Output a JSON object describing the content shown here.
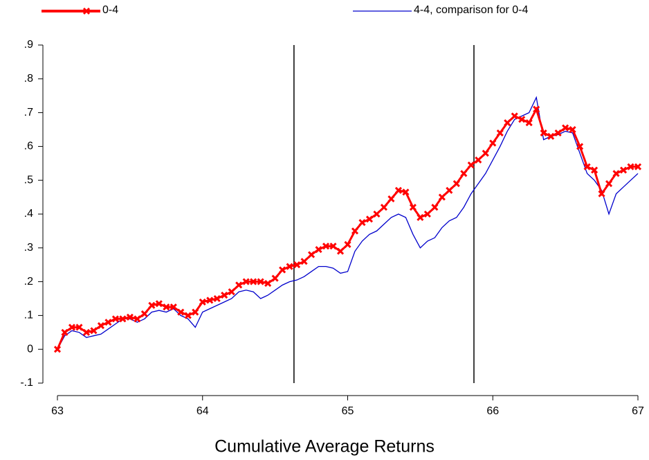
{
  "chart_data": {
    "type": "line",
    "xlabel": "Cumulative Average Returns",
    "x": [
      63.0,
      63.05,
      63.1,
      63.15,
      63.2,
      63.25,
      63.3,
      63.35,
      63.4,
      63.45,
      63.5,
      63.55,
      63.6,
      63.65,
      63.7,
      63.75,
      63.8,
      63.85,
      63.9,
      63.95,
      64.0,
      64.05,
      64.1,
      64.15,
      64.2,
      64.25,
      64.3,
      64.35,
      64.4,
      64.45,
      64.5,
      64.55,
      64.6,
      64.65,
      64.7,
      64.75,
      64.8,
      64.85,
      64.9,
      64.95,
      65.0,
      65.05,
      65.1,
      65.15,
      65.2,
      65.25,
      65.3,
      65.35,
      65.4,
      65.45,
      65.5,
      65.55,
      65.6,
      65.65,
      65.7,
      65.75,
      65.8,
      65.85,
      65.9,
      65.95,
      66.0,
      66.05,
      66.1,
      66.15,
      66.2,
      66.25,
      66.3,
      66.35,
      66.4,
      66.45,
      66.5,
      66.55,
      66.6,
      66.65,
      66.7,
      66.75,
      66.8,
      66.85,
      66.9,
      66.95,
      67.0
    ],
    "series": [
      {
        "name": "0-4",
        "color": "#ff0000",
        "marker": "x",
        "values": [
          0,
          0.05,
          0.065,
          0.065,
          0.05,
          0.055,
          0.07,
          0.08,
          0.09,
          0.09,
          0.095,
          0.09,
          0.105,
          0.13,
          0.135,
          0.125,
          0.125,
          0.11,
          0.1,
          0.11,
          0.14,
          0.145,
          0.15,
          0.16,
          0.17,
          0.19,
          0.2,
          0.2,
          0.2,
          0.195,
          0.21,
          0.235,
          0.245,
          0.25,
          0.26,
          0.28,
          0.295,
          0.305,
          0.305,
          0.29,
          0.31,
          0.35,
          0.375,
          0.385,
          0.4,
          0.42,
          0.445,
          0.47,
          0.465,
          0.42,
          0.39,
          0.4,
          0.42,
          0.45,
          0.47,
          0.49,
          0.52,
          0.545,
          0.56,
          0.58,
          0.61,
          0.64,
          0.67,
          0.69,
          0.68,
          0.67,
          0.71,
          0.64,
          0.63,
          0.64,
          0.655,
          0.65,
          0.6,
          0.54,
          0.53,
          0.46,
          0.49,
          0.52,
          0.53,
          0.54,
          0.54
        ]
      },
      {
        "name": "4-4, comparison for 0-4",
        "color": "#0000cc",
        "marker": "none",
        "values": [
          0,
          0.04,
          0.055,
          0.05,
          0.035,
          0.04,
          0.045,
          0.06,
          0.075,
          0.09,
          0.09,
          0.08,
          0.09,
          0.11,
          0.115,
          0.11,
          0.12,
          0.1,
          0.09,
          0.065,
          0.11,
          0.12,
          0.13,
          0.14,
          0.15,
          0.17,
          0.175,
          0.17,
          0.15,
          0.16,
          0.175,
          0.19,
          0.2,
          0.205,
          0.215,
          0.23,
          0.245,
          0.245,
          0.24,
          0.225,
          0.23,
          0.29,
          0.32,
          0.34,
          0.35,
          0.37,
          0.39,
          0.4,
          0.39,
          0.34,
          0.3,
          0.32,
          0.33,
          0.36,
          0.38,
          0.39,
          0.42,
          0.46,
          0.49,
          0.52,
          0.56,
          0.6,
          0.645,
          0.68,
          0.69,
          0.7,
          0.745,
          0.62,
          0.63,
          0.635,
          0.645,
          0.64,
          0.58,
          0.52,
          0.5,
          0.47,
          0.4,
          0.46,
          0.48,
          0.5,
          0.52
        ]
      }
    ],
    "xlim": [
      63,
      67
    ],
    "xticks": [
      63,
      64,
      65,
      66,
      67
    ],
    "ylim": [
      -0.1,
      0.9
    ],
    "yticks": [
      {
        "value": -0.1,
        "label": "-.1"
      },
      0,
      {
        "value": 0.1,
        "label": ".1"
      },
      {
        "value": 0.2,
        "label": ".2"
      },
      {
        "value": 0.3,
        "label": ".3"
      },
      {
        "value": 0.4,
        "label": ".4"
      },
      {
        "value": 0.5,
        "label": ".5"
      },
      {
        "value": 0.6,
        "label": ".6"
      },
      {
        "value": 0.7,
        "label": ".7"
      },
      {
        "value": 0.8,
        "label": ".8"
      },
      {
        "value": 0.9,
        "label": ".9"
      }
    ],
    "vlines": [
      64.63,
      65.87
    ],
    "grid": false,
    "legend": "top"
  }
}
